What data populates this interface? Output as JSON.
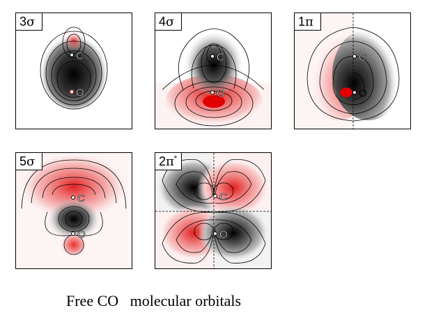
{
  "caption": "Free CO   molecular orbitals",
  "atom_labels": {
    "carbon": "C",
    "oxygen": "O"
  },
  "colors": {
    "positive_lobe": "#e83030",
    "negative_lobe": "#111111",
    "frame": "#000000",
    "background": "#ffffff"
  },
  "panels": [
    {
      "id": "3sigma",
      "number": "3",
      "symbol": "σ",
      "superscript": ""
    },
    {
      "id": "4sigma",
      "number": "4",
      "symbol": "σ",
      "superscript": ""
    },
    {
      "id": "1pi",
      "number": "1",
      "symbol": "π",
      "superscript": ""
    },
    {
      "id": "5sigma",
      "number": "5",
      "symbol": "σ",
      "superscript": ""
    },
    {
      "id": "2pistar",
      "number": "2",
      "symbol": "π",
      "superscript": "*"
    }
  ]
}
